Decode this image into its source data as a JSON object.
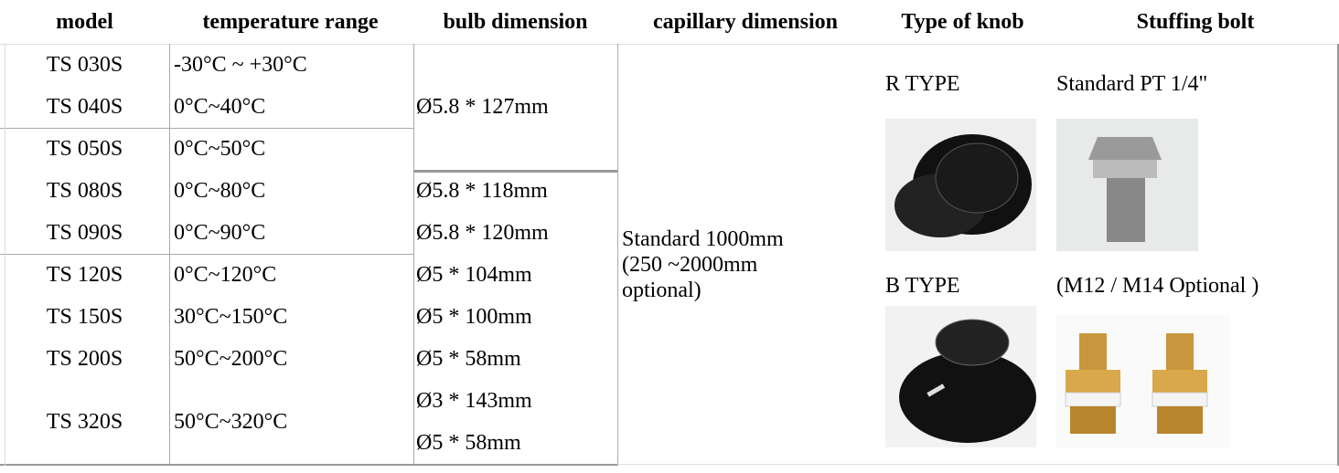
{
  "table": {
    "header": [
      "model",
      "temperature range",
      "bulb dimension",
      "capillary dimension",
      "Type of knob",
      "Stuffing bolt"
    ],
    "rows": [
      {
        "model": "TS 030S",
        "temperature_range": "-30°C ~ +30°C"
      },
      {
        "model": "TS 040S",
        "temperature_range": "0°C~40°C"
      },
      {
        "model": "TS 050S",
        "temperature_range": "0°C~50°C"
      },
      {
        "model": "TS 080S",
        "temperature_range": "0°C~80°C"
      },
      {
        "model": "TS 090S",
        "temperature_range": "0°C~90°C"
      },
      {
        "model": "TS 120S",
        "temperature_range": "0°C~120°C"
      },
      {
        "model": "TS 150S",
        "temperature_range": "30°C~150°C"
      },
      {
        "model": "TS 200S",
        "temperature_range": "50°C~200°C"
      },
      {
        "model": "TS 320S",
        "temperature_range": "50°C~320°C"
      }
    ],
    "bulb_dimension": [
      "Ø5.8 * 127mm",
      "Ø5.8 * 118mm",
      "Ø5.8 * 120mm",
      "Ø5 * 104mm",
      "Ø5 * 100mm",
      "Ø5 * 58mm",
      "Ø3 * 143mm",
      "Ø5 * 58mm"
    ],
    "capillary_dimension": [
      "Standard 1000mm",
      "(250 ~2000mm",
      "optional)"
    ],
    "knob": [
      "R TYPE",
      "B TYPE"
    ],
    "stuffing_bolt": [
      "Standard PT 1/4\"",
      "(M12 / M14 Optional )"
    ]
  }
}
